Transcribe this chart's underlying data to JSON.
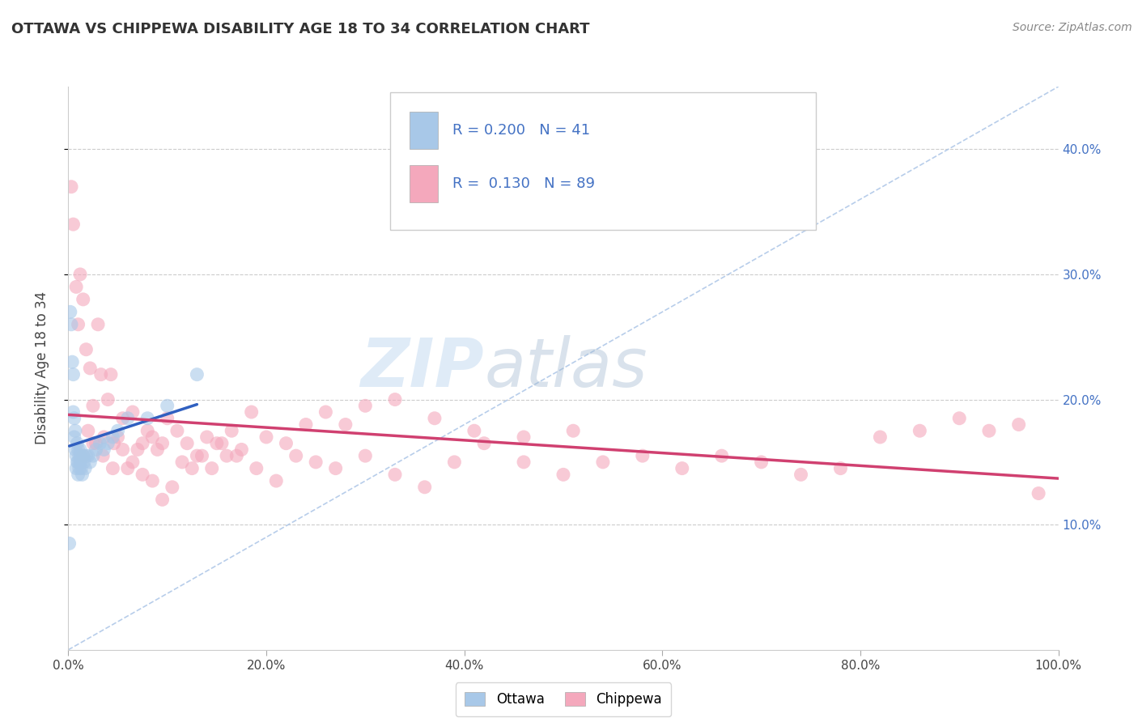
{
  "title": "OTTAWA VS CHIPPEWA DISABILITY AGE 18 TO 34 CORRELATION CHART",
  "source": "Source: ZipAtlas.com",
  "ylabel": "Disability Age 18 to 34",
  "xlim": [
    0.0,
    1.0
  ],
  "ylim": [
    0.0,
    0.45
  ],
  "legend_r_ottawa": "0.200",
  "legend_n_ottawa": "41",
  "legend_r_chippewa": "0.130",
  "legend_n_chippewa": "89",
  "ottawa_color": "#a8c8e8",
  "chippewa_color": "#f4a8bc",
  "ottawa_line_color": "#3060c0",
  "chippewa_line_color": "#d04070",
  "diag_color": "#b0c8e8",
  "watermark_zip": "ZIP",
  "watermark_atlas": "atlas",
  "ottawa_x": [
    0.001,
    0.002,
    0.003,
    0.004,
    0.005,
    0.005,
    0.006,
    0.006,
    0.007,
    0.007,
    0.008,
    0.008,
    0.009,
    0.009,
    0.01,
    0.01,
    0.01,
    0.011,
    0.011,
    0.012,
    0.012,
    0.013,
    0.013,
    0.014,
    0.015,
    0.016,
    0.017,
    0.018,
    0.02,
    0.022,
    0.025,
    0.028,
    0.032,
    0.036,
    0.04,
    0.045,
    0.05,
    0.06,
    0.08,
    0.1,
    0.13
  ],
  "ottawa_y": [
    0.085,
    0.27,
    0.26,
    0.23,
    0.22,
    0.19,
    0.185,
    0.17,
    0.175,
    0.16,
    0.155,
    0.145,
    0.165,
    0.15,
    0.16,
    0.15,
    0.14,
    0.155,
    0.145,
    0.16,
    0.15,
    0.155,
    0.145,
    0.14,
    0.155,
    0.15,
    0.145,
    0.155,
    0.155,
    0.15,
    0.155,
    0.16,
    0.165,
    0.16,
    0.165,
    0.17,
    0.175,
    0.185,
    0.185,
    0.195,
    0.22
  ],
  "chippewa_x": [
    0.003,
    0.005,
    0.008,
    0.01,
    0.012,
    0.015,
    0.018,
    0.02,
    0.022,
    0.025,
    0.028,
    0.03,
    0.033,
    0.036,
    0.04,
    0.043,
    0.046,
    0.05,
    0.055,
    0.06,
    0.065,
    0.07,
    0.075,
    0.08,
    0.085,
    0.09,
    0.095,
    0.1,
    0.11,
    0.12,
    0.13,
    0.14,
    0.15,
    0.16,
    0.17,
    0.19,
    0.21,
    0.23,
    0.25,
    0.27,
    0.3,
    0.33,
    0.36,
    0.39,
    0.42,
    0.46,
    0.5,
    0.54,
    0.58,
    0.62,
    0.66,
    0.7,
    0.74,
    0.78,
    0.82,
    0.86,
    0.9,
    0.93,
    0.96,
    0.98,
    0.015,
    0.025,
    0.035,
    0.045,
    0.055,
    0.065,
    0.075,
    0.085,
    0.095,
    0.105,
    0.115,
    0.125,
    0.135,
    0.145,
    0.155,
    0.165,
    0.175,
    0.185,
    0.2,
    0.22,
    0.24,
    0.26,
    0.28,
    0.3,
    0.33,
    0.37,
    0.41,
    0.46,
    0.51
  ],
  "chippewa_y": [
    0.37,
    0.34,
    0.29,
    0.26,
    0.3,
    0.28,
    0.24,
    0.175,
    0.225,
    0.195,
    0.165,
    0.26,
    0.22,
    0.17,
    0.2,
    0.22,
    0.165,
    0.17,
    0.185,
    0.145,
    0.19,
    0.16,
    0.165,
    0.175,
    0.17,
    0.16,
    0.165,
    0.185,
    0.175,
    0.165,
    0.155,
    0.17,
    0.165,
    0.155,
    0.155,
    0.145,
    0.135,
    0.155,
    0.15,
    0.145,
    0.155,
    0.14,
    0.13,
    0.15,
    0.165,
    0.15,
    0.14,
    0.15,
    0.155,
    0.145,
    0.155,
    0.15,
    0.14,
    0.145,
    0.17,
    0.175,
    0.185,
    0.175,
    0.18,
    0.125,
    0.155,
    0.165,
    0.155,
    0.145,
    0.16,
    0.15,
    0.14,
    0.135,
    0.12,
    0.13,
    0.15,
    0.145,
    0.155,
    0.145,
    0.165,
    0.175,
    0.16,
    0.19,
    0.17,
    0.165,
    0.18,
    0.19,
    0.18,
    0.195,
    0.2,
    0.185,
    0.175,
    0.17,
    0.175
  ]
}
